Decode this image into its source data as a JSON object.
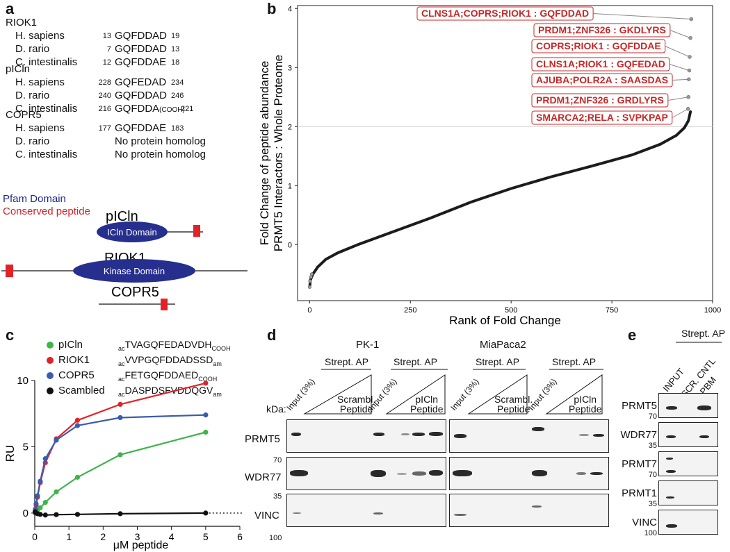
{
  "panel_a": {
    "label": "a",
    "groups": [
      {
        "protein": "RIOK1",
        "rows": [
          {
            "species": "H. sapiens",
            "start": "13",
            "seq": "GQFDDAD",
            "end": "19"
          },
          {
            "species": "D. rario",
            "start": "7",
            "seq": "GQFDDAD",
            "end": "13"
          },
          {
            "species": "C. intestinalis",
            "start": "12",
            "seq": "GQFDDAE",
            "end": "18"
          }
        ]
      },
      {
        "protein": "pICln",
        "rows": [
          {
            "species": "H. sapiens",
            "start": "228",
            "seq": "GQFEDAD",
            "end": "234"
          },
          {
            "species": "D. rario",
            "start": "240",
            "seq": "GQFDDAD",
            "end": "246"
          },
          {
            "species": "C. intestinalis",
            "start": "216",
            "seq": "GQFDDA",
            "seq_suffix": "(COOH)",
            "end": "221"
          }
        ]
      },
      {
        "protein": "COPR5",
        "rows": [
          {
            "species": "H. sapiens",
            "start": "177",
            "seq": "GQFDDAE",
            "end": "183"
          },
          {
            "species": "D. rario",
            "start": "",
            "seq": "No protein homolog",
            "end": ""
          },
          {
            "species": "C. intestinalis",
            "start": "",
            "seq": "No protein homolog",
            "end": ""
          }
        ]
      }
    ],
    "legend_pfam": "Pfam Domain",
    "legend_conserved": "Conserved peptide",
    "diagrams": [
      {
        "name": "pICln",
        "domain": "ICln Domain"
      },
      {
        "name": "RIOK1",
        "domain": "Kinase Domain"
      },
      {
        "name": "COPR5",
        "domain": ""
      }
    ]
  },
  "panel_b": {
    "label": "b",
    "chart_data": {
      "type": "scatter",
      "title": "",
      "xlabel": "Rank of Fold Change",
      "ylabel_line1": "Fold Change of peptide abundance",
      "ylabel_line2": "PRMT5 Interactors : Whole Proteome",
      "xlim": [
        -30,
        1000
      ],
      "ylim": [
        -0.95,
        4.05
      ],
      "xticks": [
        "0",
        "250",
        "500",
        "750",
        "1000"
      ],
      "yticks": [
        "0",
        "1",
        "2",
        "3",
        "4"
      ],
      "threshold": 2,
      "curve": [
        [
          0,
          -0.72
        ],
        [
          2,
          -0.6
        ],
        [
          8,
          -0.5
        ],
        [
          20,
          -0.38
        ],
        [
          40,
          -0.25
        ],
        [
          70,
          -0.14
        ],
        [
          120,
          0.0
        ],
        [
          200,
          0.2
        ],
        [
          300,
          0.45
        ],
        [
          400,
          0.72
        ],
        [
          500,
          0.95
        ],
        [
          600,
          1.15
        ],
        [
          700,
          1.33
        ],
        [
          800,
          1.52
        ],
        [
          870,
          1.7
        ],
        [
          910,
          1.85
        ],
        [
          930,
          1.98
        ],
        [
          940,
          2.1
        ],
        [
          945,
          2.25
        ]
      ],
      "labeled_points": [
        {
          "text": "CLNS1A;COPRS;RIOK1 : GQFDDAD",
          "x": 947,
          "y": 3.82
        },
        {
          "text": "PRDM1;ZNF326 : GKDLYRS",
          "x": 945,
          "y": 3.5
        },
        {
          "text": "COPRS;RIOK1 : GQFDDAE",
          "x": 943,
          "y": 3.18
        },
        {
          "text": "CLNS1A;RIOK1 : GQFEDAD",
          "x": 942,
          "y": 2.95
        },
        {
          "text": "AJUBA;POLR2A : SAASDAS",
          "x": 941,
          "y": 2.8
        },
        {
          "text": "PRDM1;ZNF326 : GRDLYRS",
          "x": 940,
          "y": 2.5
        },
        {
          "text": "SMARCA2;RELA : SVPKPAP",
          "x": 939,
          "y": 2.3
        }
      ]
    }
  },
  "panel_c": {
    "label": "c",
    "legend": [
      {
        "name": "pICln",
        "color": "#3cb54a",
        "pre": "ac",
        "seq": "TVAGQFEDADVDH",
        "post": "COOH"
      },
      {
        "name": "RIOK1",
        "color": "#e32228",
        "pre": "ac",
        "seq": "VVPGQFDDADSSD",
        "post": "am"
      },
      {
        "name": "COPR5",
        "color": "#3a5bb0",
        "pre": "ac",
        "seq": "FETGQFDDAED",
        "post": "COOH"
      },
      {
        "name": "Scambled",
        "color": "#111111",
        "pre": "ac",
        "seq": "DASPDSFVDDQGV",
        "post": "am"
      }
    ],
    "chart_data": {
      "type": "line",
      "xlabel": "μM peptide",
      "ylabel": "RU",
      "xlim": [
        0,
        6
      ],
      "ylim": [
        -1,
        10
      ],
      "xticks": [
        "0",
        "1",
        "2",
        "3",
        "4",
        "5",
        "6"
      ],
      "yticks": [
        "0",
        "5",
        "10"
      ],
      "x": [
        0.01,
        0.02,
        0.04,
        0.08,
        0.16,
        0.31,
        0.63,
        1.25,
        2.5,
        5
      ],
      "series": [
        {
          "name": "pICln",
          "color": "#3cb54a",
          "values": [
            0.02,
            0.05,
            0.1,
            0.2,
            0.4,
            0.8,
            1.6,
            2.7,
            4.4,
            6.1
          ]
        },
        {
          "name": "RIOK1",
          "color": "#e32228",
          "values": [
            0.1,
            0.3,
            0.6,
            1.2,
            2.3,
            3.8,
            5.6,
            7.0,
            8.2,
            9.8
          ]
        },
        {
          "name": "COPR5",
          "color": "#3a5bb0",
          "values": [
            0.1,
            0.3,
            0.7,
            1.3,
            2.4,
            4.1,
            5.5,
            6.6,
            7.2,
            7.4
          ]
        },
        {
          "name": "Scambled",
          "color": "#111111",
          "values": [
            0.1,
            0.05,
            0.0,
            -0.05,
            -0.1,
            -0.15,
            -0.12,
            -0.1,
            -0.05,
            0.0
          ]
        }
      ]
    }
  },
  "panel_d": {
    "label": "d",
    "cell_lines": [
      "PK-1",
      "MiaPaca2"
    ],
    "ap_label": "Strept. AP",
    "input_label": "Input (3%)",
    "scrambled_label": "Scrambl.\nPeptide",
    "picln_label": "pICln\nPeptide",
    "kda_label": "kDa:",
    "rows": [
      {
        "protein": "PRMT5",
        "marker": "70"
      },
      {
        "protein": "WDR77",
        "marker": "35"
      },
      {
        "protein": "VINC",
        "marker": "100"
      }
    ]
  },
  "panel_e": {
    "label": "e",
    "ap_label": "Strept. AP",
    "col_labels": [
      "INPUT",
      "SCR. CNTL",
      "PBM"
    ],
    "rows": [
      {
        "protein": "PRMT5",
        "marker": "70"
      },
      {
        "protein": "WDR77",
        "marker": "35"
      },
      {
        "protein": "PRMT7",
        "marker": "70"
      },
      {
        "protein": "PRMT1",
        "marker": "35"
      },
      {
        "protein": "VINC",
        "marker": "100"
      }
    ]
  }
}
